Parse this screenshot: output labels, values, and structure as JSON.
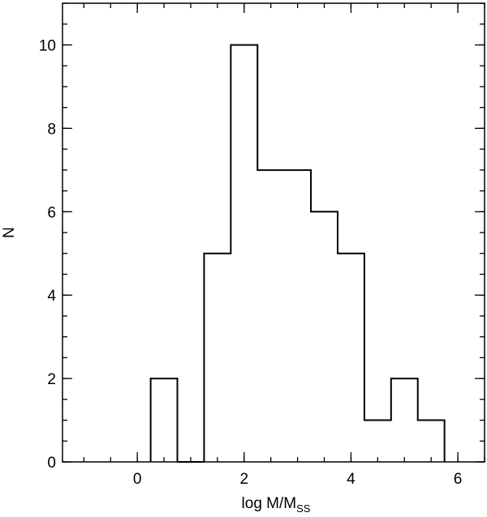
{
  "chart_data": {
    "type": "bar",
    "style": "step-histogram",
    "bins": [
      {
        "x0": 0.25,
        "x1": 0.75,
        "count": 2
      },
      {
        "x0": 0.75,
        "x1": 1.25,
        "count": 0
      },
      {
        "x0": 1.25,
        "x1": 1.75,
        "count": 5
      },
      {
        "x0": 1.75,
        "x1": 2.25,
        "count": 10
      },
      {
        "x0": 2.25,
        "x1": 2.75,
        "count": 7
      },
      {
        "x0": 2.75,
        "x1": 3.25,
        "count": 7
      },
      {
        "x0": 3.25,
        "x1": 3.75,
        "count": 6
      },
      {
        "x0": 3.75,
        "x1": 4.25,
        "count": 5
      },
      {
        "x0": 4.25,
        "x1": 4.75,
        "count": 1
      },
      {
        "x0": 4.75,
        "x1": 5.25,
        "count": 2
      },
      {
        "x0": 5.25,
        "x1": 5.75,
        "count": 1
      }
    ],
    "xlim": [
      -1.4,
      6.5
    ],
    "ylim": [
      0,
      11
    ],
    "xticks": [
      0,
      2,
      4,
      6
    ],
    "yticks": [
      0,
      2,
      4,
      6,
      8,
      10
    ],
    "x_minor_step": 0.5,
    "y_minor_step": 0.5,
    "xlabel": "log M/M",
    "xlabel_subscript": "SS",
    "ylabel": "N",
    "grid": false,
    "line_color": "#000000"
  }
}
